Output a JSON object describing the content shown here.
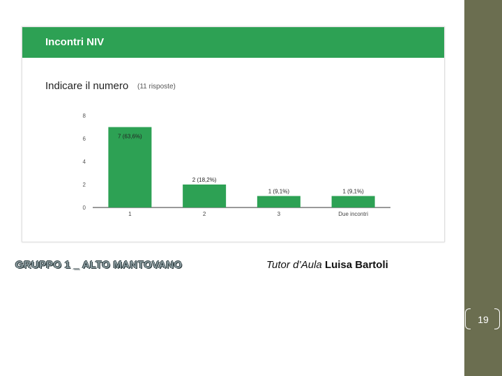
{
  "card": {
    "title": "Incontri NIV",
    "question": "Indicare il numero",
    "responses": "(11 risposte)"
  },
  "chart_data": {
    "type": "bar",
    "categories": [
      "1",
      "2",
      "3",
      "Due incontri"
    ],
    "values": [
      7,
      2,
      1,
      1
    ],
    "labels": [
      "7 (63,6%)",
      "2 (18,2%)",
      "1 (9,1%)",
      "1 (9,1%)"
    ],
    "yticks": [
      "0",
      "2",
      "4",
      "6",
      "8"
    ],
    "ylim": [
      0,
      8
    ],
    "color": "#2da154"
  },
  "footer": {
    "group": "GRUPPO 1 _ ALTO MANTOVANO",
    "tutor_prefix": "Tutor d’Aula",
    "tutor_name": "Luisa Bartoli"
  },
  "slide_number": "19"
}
